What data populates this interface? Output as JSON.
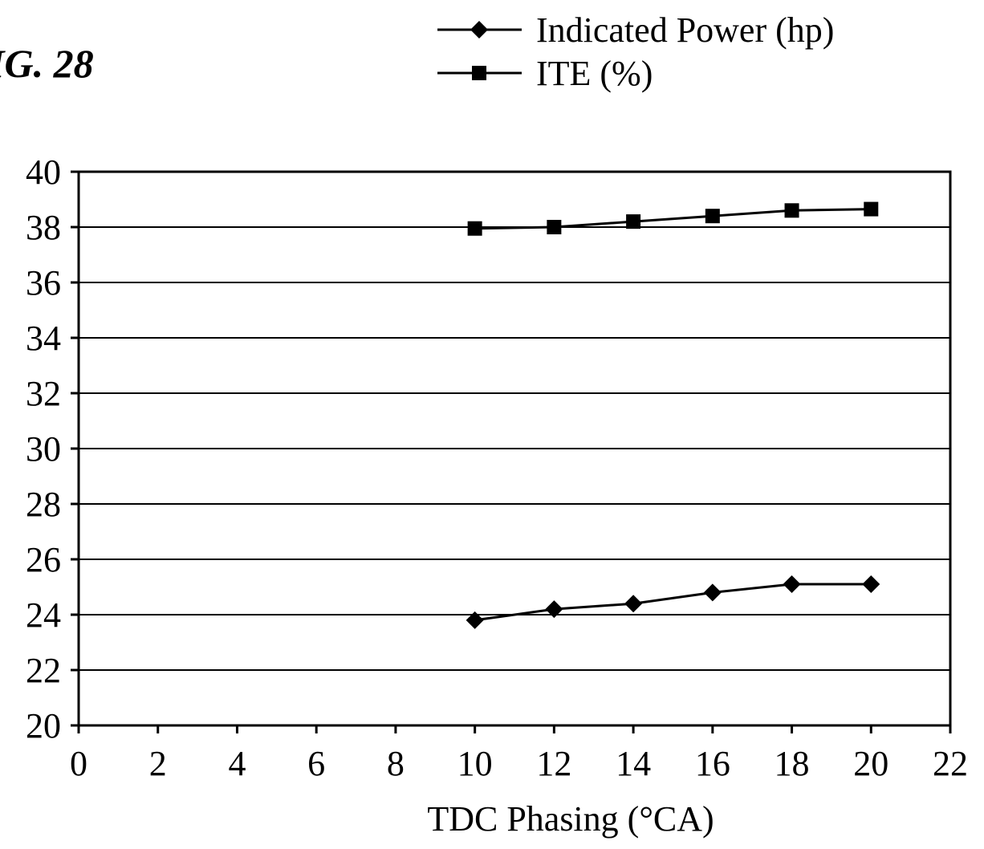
{
  "figure_label": "IG. 28",
  "chart_data": {
    "type": "line",
    "title": "",
    "xlabel": "TDC Phasing (°CA)",
    "ylabel": "",
    "xlim": [
      0,
      22
    ],
    "ylim": [
      20,
      40
    ],
    "x_ticks": [
      "0",
      "2",
      "4",
      "6",
      "8",
      "10",
      "12",
      "14",
      "16",
      "18",
      "20",
      "22"
    ],
    "y_ticks": [
      "20",
      "22",
      "24",
      "26",
      "28",
      "30",
      "32",
      "34",
      "36",
      "38",
      "40"
    ],
    "x_tick_values": [
      0,
      2,
      4,
      6,
      8,
      10,
      12,
      14,
      16,
      18,
      20,
      22
    ],
    "y_tick_values": [
      20,
      22,
      24,
      26,
      28,
      30,
      32,
      34,
      36,
      38,
      40
    ],
    "grid": "horizontal",
    "legend_position": "top-right",
    "series": [
      {
        "name": "Indicated Power (hp)",
        "marker": "diamond",
        "color": "#000000",
        "x": [
          10,
          12,
          14,
          16,
          18,
          20
        ],
        "y": [
          23.8,
          24.2,
          24.4,
          24.8,
          25.1,
          25.1
        ]
      },
      {
        "name": "ITE (%)",
        "marker": "square",
        "color": "#000000",
        "x": [
          10,
          12,
          14,
          16,
          18,
          20
        ],
        "y": [
          37.95,
          38.0,
          38.2,
          38.4,
          38.6,
          38.65
        ]
      }
    ]
  }
}
